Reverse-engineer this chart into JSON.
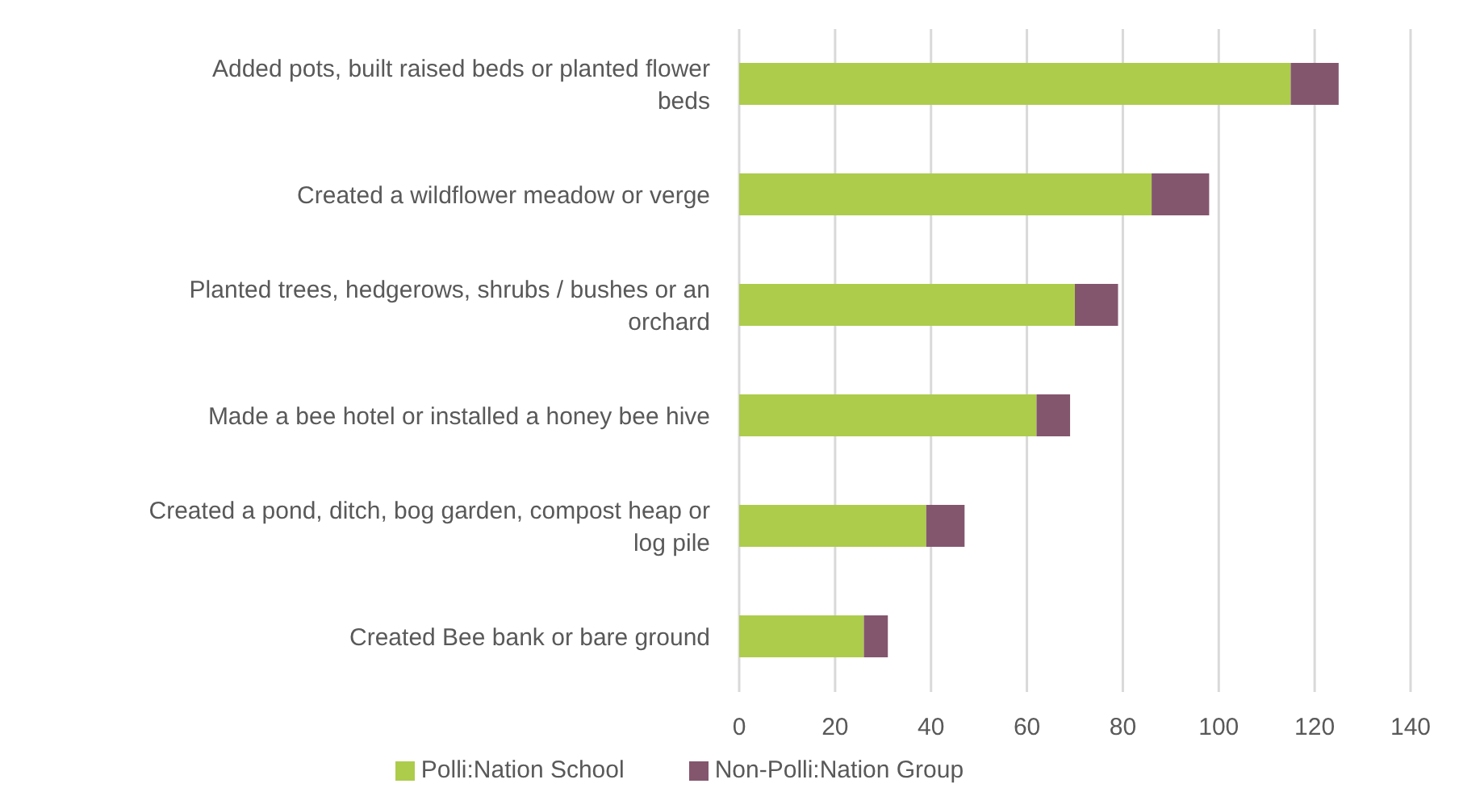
{
  "chart_data": {
    "type": "bar",
    "orientation": "horizontal",
    "stacked": true,
    "categories": [
      "Added pots, built raised beds or planted flower beds",
      "Created a wildflower meadow or verge",
      "Planted trees, hedgerows, shrubs / bushes or an orchard",
      "Made a bee hotel or installed a honey bee hive",
      "Created a pond, ditch, bog garden, compost heap or log pile",
      "Created Bee bank or bare ground"
    ],
    "series": [
      {
        "name": "Polli:Nation School",
        "color": "#adcc4c",
        "values": [
          115,
          86,
          70,
          62,
          39,
          26
        ]
      },
      {
        "name": "Non-Polli:Nation Group",
        "color": "#84566e",
        "values": [
          10,
          12,
          9,
          7,
          8,
          5
        ]
      }
    ],
    "xlim": [
      0,
      140
    ],
    "xticks": [
      0,
      20,
      40,
      60,
      80,
      100,
      120,
      140
    ],
    "grid": "x",
    "legend": "bottom"
  }
}
